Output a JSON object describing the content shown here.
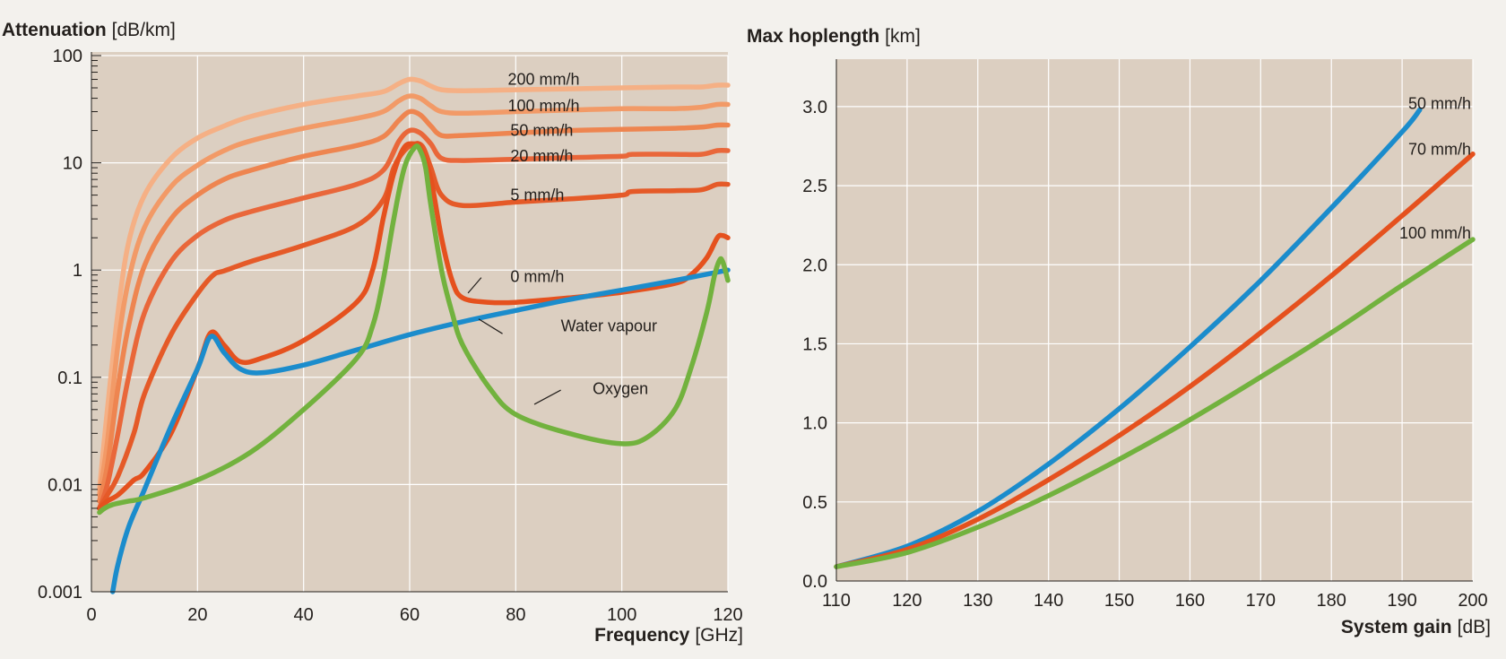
{
  "chart_data": [
    {
      "type": "line",
      "title_bold": "Attenuation",
      "title_unit": "[dB/km]",
      "xlabel_bold": "Frequency",
      "xlabel_unit": "[GHz]",
      "yscale": "log",
      "xlim": [
        0,
        120
      ],
      "ylim": [
        0.001,
        100
      ],
      "xticks": [
        0,
        20,
        40,
        60,
        80,
        100,
        120
      ],
      "xtick_labels": [
        "0",
        "20",
        "40",
        "60",
        "80",
        "100",
        "120"
      ],
      "yticks": [
        0.001,
        0.01,
        0.1,
        1,
        10,
        100
      ],
      "ytick_labels": [
        "0.001",
        "0.01",
        "0.1",
        "1",
        "10",
        "100"
      ],
      "grid": true,
      "series": [
        {
          "name": "200 mm/h",
          "color": "#f5b085",
          "x": [
            1.5,
            3,
            5,
            7,
            10,
            15,
            20,
            25,
            30,
            40,
            50,
            55,
            58,
            60,
            62,
            64,
            66,
            70,
            80,
            90,
            100,
            110,
            115,
            118,
            120
          ],
          "y": [
            0.009,
            0.05,
            0.4,
            1.8,
            5,
            11,
            17,
            22,
            27,
            35,
            42,
            46,
            55,
            60,
            58,
            52,
            48,
            47,
            48,
            49,
            50,
            51,
            51,
            53,
            53
          ]
        },
        {
          "name": "100 mm/h",
          "color": "#f29a67",
          "x": [
            1.5,
            3,
            5,
            7,
            10,
            15,
            20,
            25,
            30,
            40,
            50,
            55,
            58,
            60,
            62,
            64,
            66,
            70,
            80,
            90,
            100,
            110,
            115,
            118,
            120
          ],
          "y": [
            0.008,
            0.025,
            0.2,
            0.8,
            2.5,
            6,
            9.5,
            13,
            16,
            21,
            26,
            30,
            38,
            42,
            40,
            34,
            30,
            29,
            30,
            31,
            32,
            32,
            33,
            35,
            35
          ]
        },
        {
          "name": "50 mm/h",
          "color": "#ee8550",
          "x": [
            1.5,
            3,
            5,
            7,
            10,
            15,
            20,
            25,
            30,
            40,
            50,
            55,
            58,
            60,
            62,
            64,
            66,
            70,
            80,
            90,
            100,
            110,
            115,
            118,
            120
          ],
          "y": [
            0.007,
            0.015,
            0.08,
            0.3,
            1.1,
            3,
            5,
            7,
            8.5,
            11.5,
            14.5,
            17.5,
            25,
            30,
            28,
            22,
            18,
            18,
            19,
            20,
            20.5,
            21,
            21.5,
            22.5,
            22.5
          ]
        },
        {
          "name": "20 mm/h",
          "color": "#e9673a",
          "x": [
            1.5,
            3,
            5,
            7,
            10,
            15,
            20,
            25,
            30,
            40,
            50,
            55,
            58,
            60,
            62,
            64,
            66,
            70,
            80,
            90,
            100,
            102,
            110,
            115,
            118,
            120
          ],
          "y": [
            0.006,
            0.01,
            0.03,
            0.1,
            0.4,
            1.2,
            2.1,
            2.9,
            3.5,
            4.7,
            6.3,
            8.5,
            16,
            20,
            19,
            15,
            11,
            10.5,
            10.8,
            11.2,
            11.5,
            12,
            12,
            12,
            13,
            13
          ]
        },
        {
          "name": "5 mm/h",
          "color": "#e55a28",
          "x": [
            1.5,
            3,
            5,
            8,
            10,
            15,
            20,
            23,
            25,
            30,
            40,
            50,
            55,
            57,
            59,
            61,
            62.5,
            64,
            66,
            70,
            80,
            90,
            100,
            102,
            110,
            115,
            118,
            120
          ],
          "y": [
            0.006,
            0.008,
            0.012,
            0.03,
            0.07,
            0.25,
            0.6,
            0.9,
            0.98,
            1.2,
            1.7,
            2.6,
            4.5,
            9,
            13,
            15,
            14,
            9,
            5,
            4,
            4.3,
            4.6,
            5,
            5.4,
            5.5,
            5.6,
            6.3,
            6.3
          ]
        },
        {
          "name": "0 mm/h",
          "color": "#e5511e",
          "x": [
            1.5,
            3,
            5,
            8,
            10,
            15,
            20,
            22.5,
            25,
            28,
            32,
            40,
            50,
            53,
            55,
            57,
            59,
            61,
            62,
            64,
            66,
            68,
            70,
            75,
            80,
            90,
            100,
            110,
            113,
            116,
            118,
            119,
            120
          ],
          "y": [
            0.006,
            0.007,
            0.008,
            0.011,
            0.013,
            0.03,
            0.12,
            0.26,
            0.2,
            0.14,
            0.15,
            0.22,
            0.5,
            1,
            3,
            8,
            14,
            15,
            14,
            7,
            2,
            0.8,
            0.55,
            0.5,
            0.5,
            0.55,
            0.62,
            0.75,
            0.9,
            1.3,
            2,
            2.1,
            2
          ]
        },
        {
          "name": "Water vapour",
          "color": "#1b8ccc",
          "x": [
            4,
            5,
            7,
            10,
            15,
            20,
            22.5,
            25,
            28,
            32,
            40,
            50,
            60,
            70,
            80,
            90,
            100,
            110,
            120
          ],
          "y": [
            0.001,
            0.0018,
            0.004,
            0.009,
            0.035,
            0.12,
            0.24,
            0.17,
            0.12,
            0.11,
            0.13,
            0.18,
            0.25,
            0.33,
            0.42,
            0.53,
            0.65,
            0.8,
            1
          ]
        },
        {
          "name": "Oxygen",
          "color": "#72b23e",
          "x": [
            1.5,
            2.5,
            4,
            7,
            10,
            20,
            30,
            40,
            50,
            53,
            55,
            57,
            59,
            61,
            62,
            63,
            64,
            66,
            68,
            70,
            75,
            80,
            90,
            100,
            105,
            110,
            113,
            116,
            117.5,
            118.5,
            119,
            119.5,
            120
          ],
          "y": [
            0.0055,
            0.006,
            0.0065,
            0.007,
            0.0075,
            0.011,
            0.02,
            0.05,
            0.15,
            0.3,
            0.8,
            3,
            9,
            14,
            13,
            9,
            4,
            1,
            0.4,
            0.2,
            0.08,
            0.045,
            0.03,
            0.024,
            0.028,
            0.05,
            0.12,
            0.4,
            0.9,
            1.25,
            1.2,
            1,
            0.8
          ]
        }
      ],
      "annotations": [
        {
          "text": "200 mm/h",
          "x": 78.5,
          "y": 60
        },
        {
          "text": "100 mm/h",
          "x": 78.5,
          "y": 34
        },
        {
          "text": "50 mm/h",
          "x": 79,
          "y": 20
        },
        {
          "text": "20 mm/h",
          "x": 79,
          "y": 11.6
        },
        {
          "text": "5 mm/h",
          "x": 79,
          "y": 5
        },
        {
          "text": "0 mm/h",
          "x": 79,
          "y": 0.87,
          "leader": [
            71,
            0.61,
            73.5,
            0.85
          ]
        },
        {
          "text": "Water vapour",
          "x": 88.5,
          "y": 0.3,
          "leader": [
            73,
            0.35,
            77.5,
            0.255
          ]
        },
        {
          "text": "Oxygen",
          "x": 94.5,
          "y": 0.078,
          "leader": [
            83.5,
            0.056,
            88.5,
            0.076
          ]
        }
      ]
    },
    {
      "type": "line",
      "title_bold": "Max hoplength",
      "title_unit": "[km]",
      "xlabel_bold": "System gain",
      "xlabel_unit": "[dB]",
      "xlim": [
        110,
        200
      ],
      "ylim": [
        0,
        3.3
      ],
      "xticks": [
        110,
        120,
        130,
        140,
        150,
        160,
        170,
        180,
        190,
        200
      ],
      "xtick_labels": [
        "110",
        "120",
        "130",
        "140",
        "150",
        "160",
        "170",
        "180",
        "190",
        "200"
      ],
      "yticks": [
        0,
        0.5,
        1,
        1.5,
        2,
        2.5,
        3
      ],
      "ytick_labels": [
        "0.0",
        "0.5",
        "1.0",
        "1.5",
        "2.0",
        "2.5",
        "3.0"
      ],
      "grid": true,
      "series": [
        {
          "name": "50 mm/h",
          "color": "#1b8ccc",
          "x": [
            110,
            120,
            130,
            140,
            150,
            160,
            170,
            180,
            190,
            192.5
          ],
          "y": [
            0.09,
            0.22,
            0.44,
            0.74,
            1.09,
            1.48,
            1.9,
            2.36,
            2.84,
            2.98
          ]
        },
        {
          "name": "70 mm/h",
          "color": "#e5511e",
          "x": [
            110,
            120,
            130,
            140,
            150,
            160,
            170,
            180,
            190,
            200
          ],
          "y": [
            0.09,
            0.2,
            0.39,
            0.64,
            0.92,
            1.23,
            1.57,
            1.93,
            2.31,
            2.7
          ]
        },
        {
          "name": "100 mm/h",
          "color": "#72b23e",
          "x": [
            110,
            120,
            130,
            140,
            150,
            160,
            170,
            180,
            190,
            200
          ],
          "y": [
            0.09,
            0.18,
            0.34,
            0.54,
            0.77,
            1.02,
            1.29,
            1.57,
            1.87,
            2.16
          ]
        }
      ],
      "annotations": [
        {
          "text": "50 mm/h",
          "x": 200,
          "y": 3.02
        },
        {
          "text": "70 mm/h",
          "x": 200,
          "y": 2.73
        },
        {
          "text": "100 mm/h",
          "x": 200,
          "y": 2.2
        }
      ]
    }
  ]
}
